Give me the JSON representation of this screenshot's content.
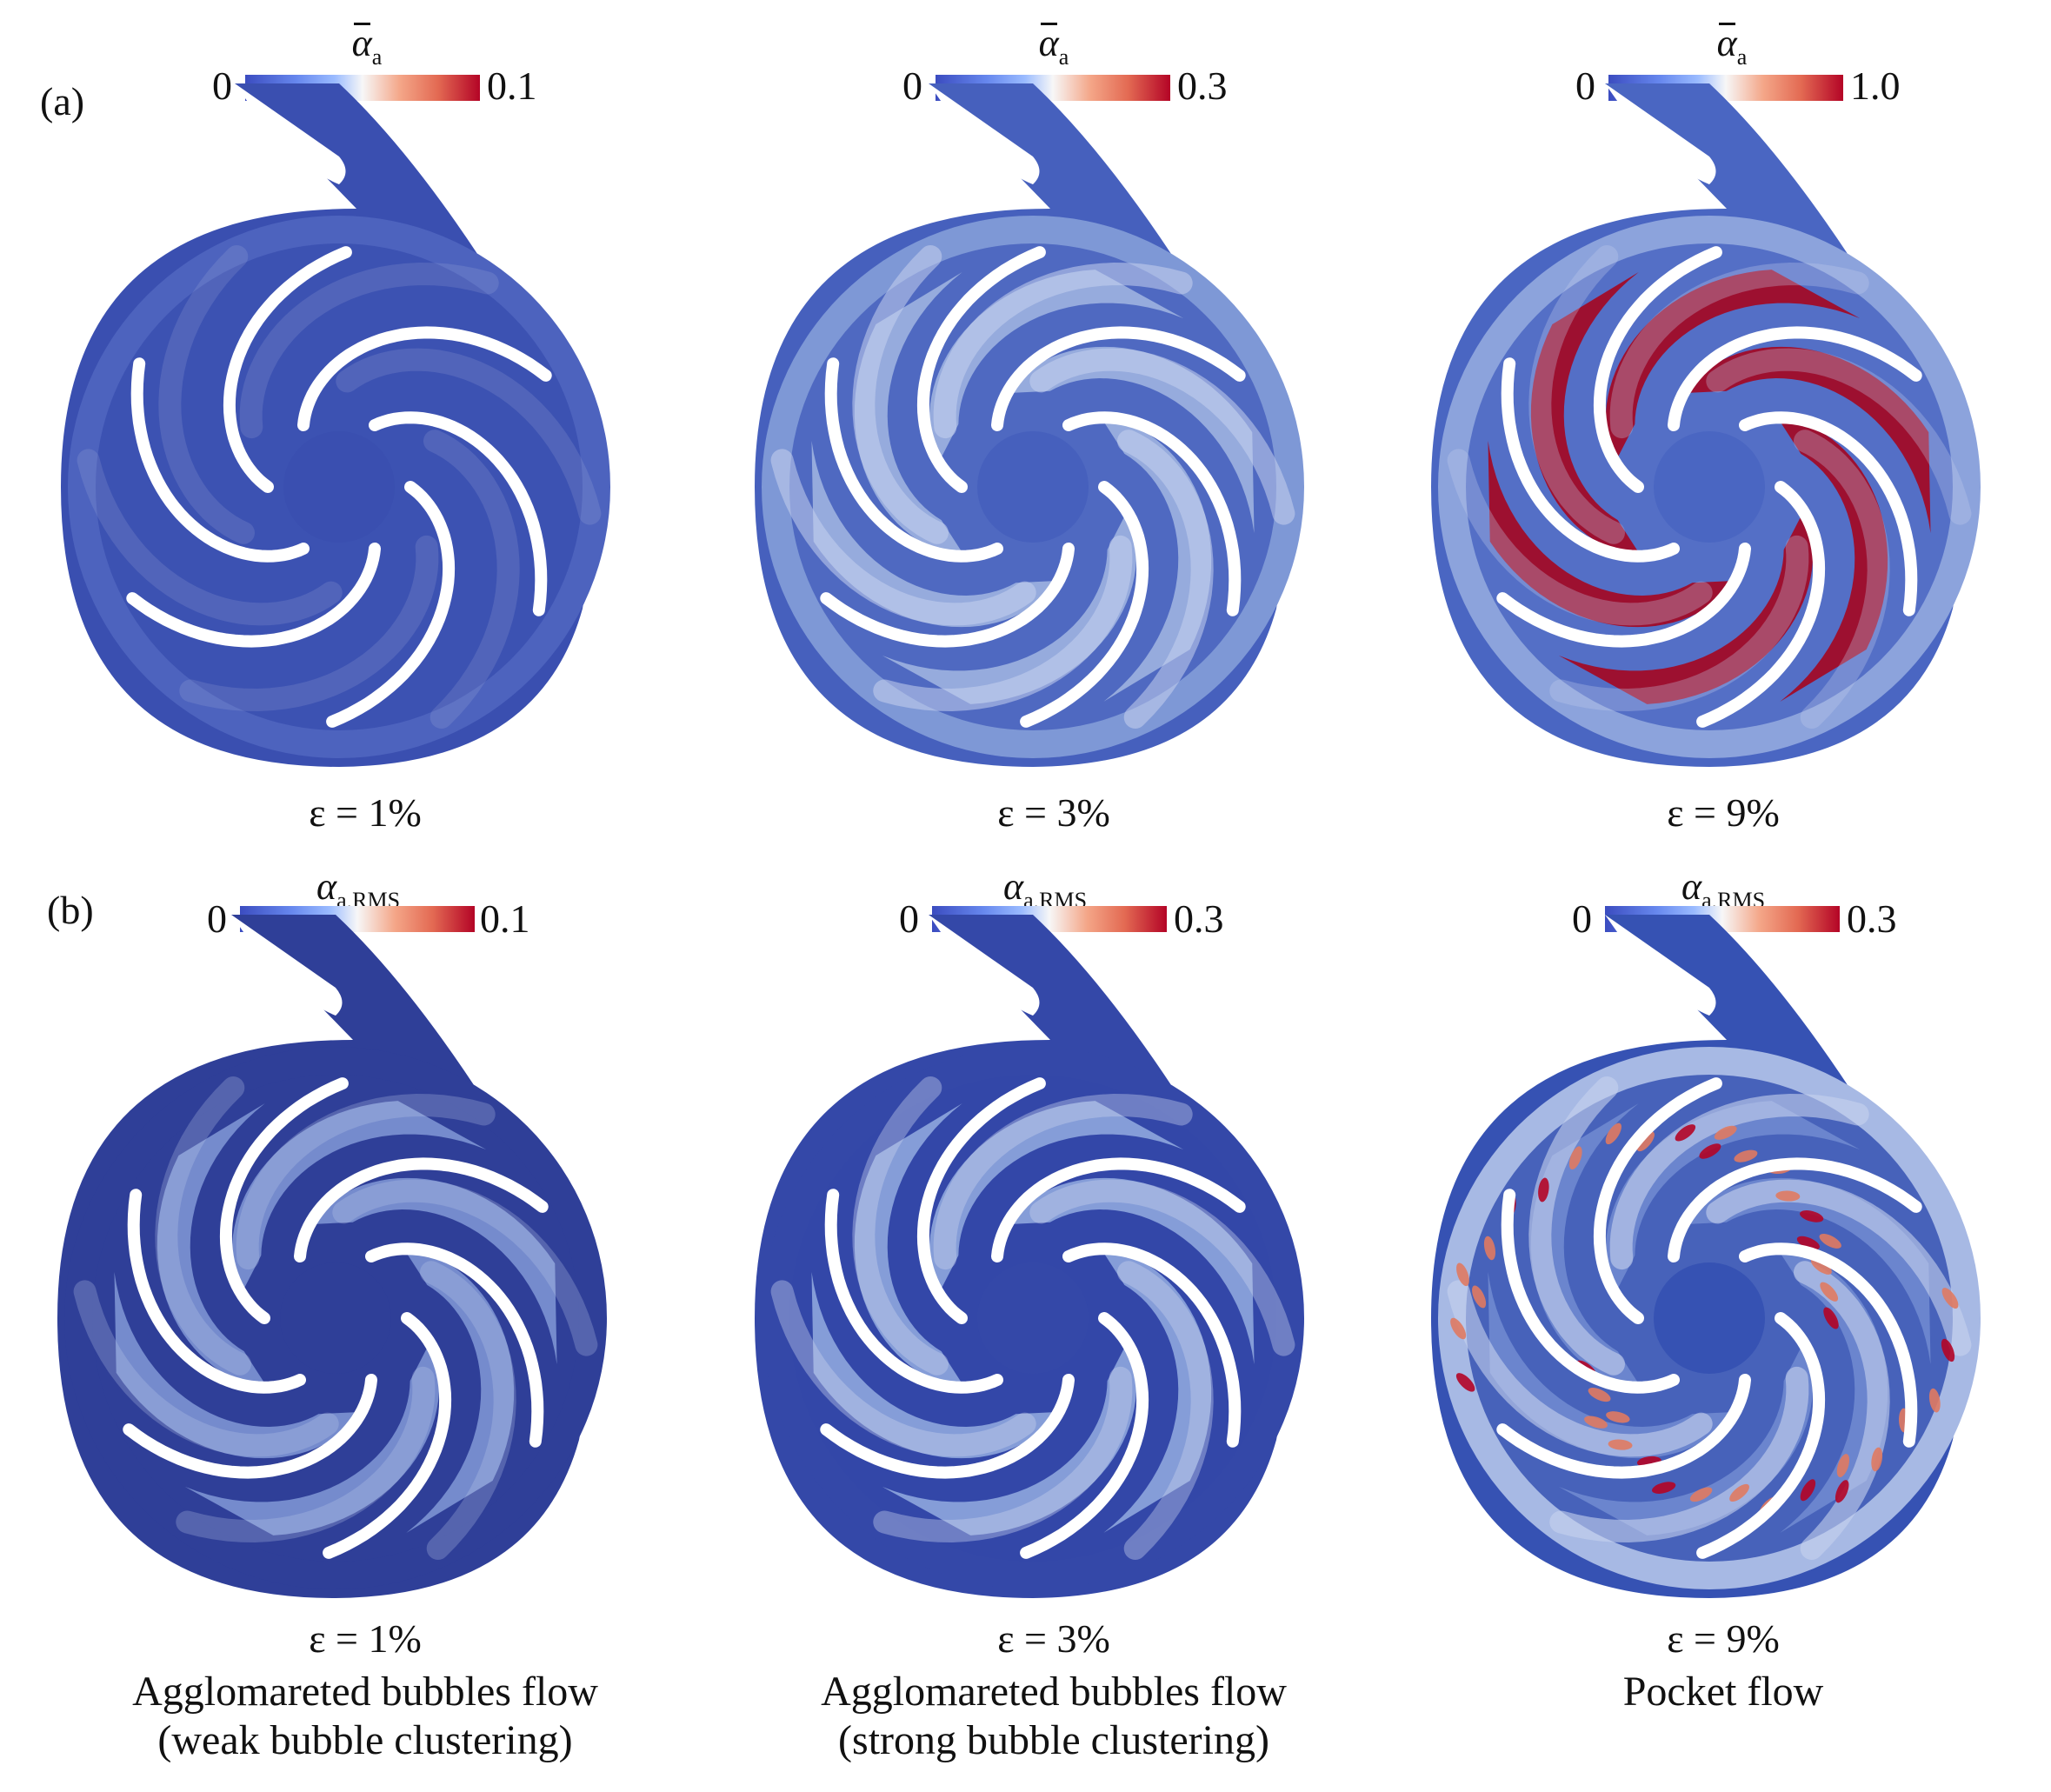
{
  "rows": {
    "a": {
      "label": "(a)",
      "cb_symbol": "α",
      "cb_sub": "a",
      "overbar": true
    },
    "b": {
      "label": "(b)",
      "cb_symbol": "α",
      "cb_sub": "a,RMS",
      "overbar": false
    }
  },
  "panels_a": [
    {
      "cb_min": "0",
      "cb_max": "0.1",
      "case": "ε = 1%"
    },
    {
      "cb_min": "0",
      "cb_max": "0.3",
      "case": "ε = 3%"
    },
    {
      "cb_min": "0",
      "cb_max": "1.0",
      "case": "ε = 9%"
    }
  ],
  "panels_b": [
    {
      "cb_min": "0",
      "cb_max": "0.1",
      "case": "ε = 1%"
    },
    {
      "cb_min": "0",
      "cb_max": "0.3",
      "case": "ε = 3%"
    },
    {
      "cb_min": "0",
      "cb_max": "0.3",
      "case": "ε = 9%"
    }
  ],
  "regimes": [
    {
      "line1": "Agglomareted bubbles flow",
      "line2": "(weak bubble clustering)"
    },
    {
      "line1": "Agglomareted bubbles flow",
      "line2": "(strong bubble clustering)"
    },
    {
      "line1": "Pocket flow",
      "line2": ""
    }
  ],
  "colormap": {
    "low": "#3b4cc0",
    "mid": "#f7f7f7",
    "high": "#b40426"
  }
}
